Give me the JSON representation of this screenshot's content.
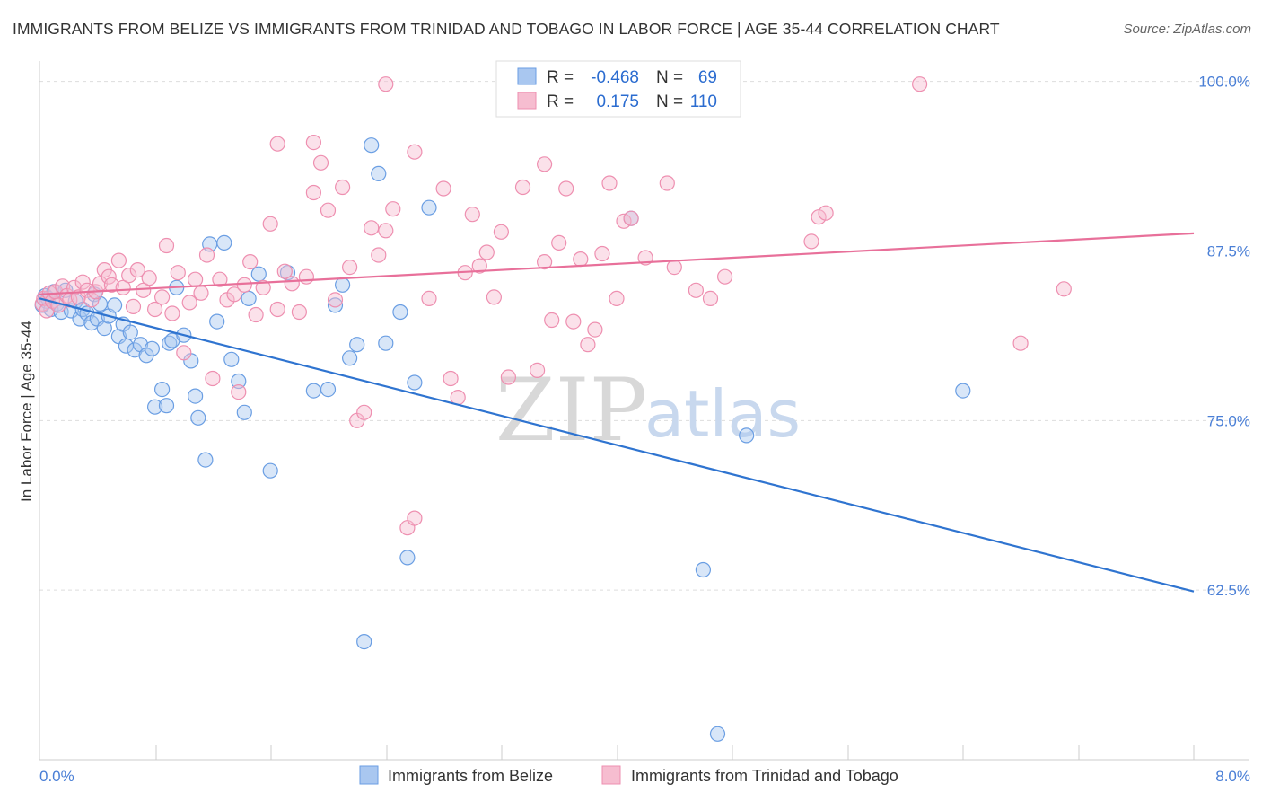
{
  "title": "IMMIGRANTS FROM BELIZE VS IMMIGRANTS FROM TRINIDAD AND TOBAGO IN LABOR FORCE | AGE 35-44 CORRELATION CHART",
  "source": "Source: ZipAtlas.com",
  "watermark": {
    "zip": "ZIP",
    "atlas": "atlas"
  },
  "colors": {
    "blue_fill": "#a9c7f0",
    "blue_stroke": "#6a9ee3",
    "blue_line": "#2f74d0",
    "pink_fill": "#f6bdd0",
    "pink_stroke": "#ee8fb0",
    "pink_line": "#e8709a",
    "grid": "#dddddd",
    "tick_label": "#4a7fd6"
  },
  "legend": {
    "rows": [
      {
        "r_label": "R =",
        "r_value": "-0.468",
        "n_label": "N =",
        "n_value": "69",
        "color": "blue"
      },
      {
        "r_label": "R =",
        "r_value": "0.175",
        "n_label": "N =",
        "n_value": "110",
        "color": "pink"
      }
    ]
  },
  "chart_data": {
    "type": "scatter",
    "title": "IMMIGRANTS FROM BELIZE VS IMMIGRANTS FROM TRINIDAD AND TOBAGO IN LABOR FORCE | AGE 35-44 CORRELATION CHART",
    "xlabel": "",
    "ylabel": "In Labor Force | Age 35-44",
    "xlim": [
      0.0,
      8.0
    ],
    "ylim": [
      50.0,
      101.5
    ],
    "x_tick_labels": [
      "0.0%",
      "8.0%"
    ],
    "y_ticks": [
      62.5,
      75.0,
      87.5,
      100.0
    ],
    "y_tick_labels": [
      "62.5%",
      "75.0%",
      "87.5%",
      "100.0%"
    ],
    "grid": true,
    "legend_position": "top-center",
    "series": [
      {
        "name": "Immigrants from Belize",
        "color": "blue",
        "trend": {
          "x": [
            0.0,
            8.0
          ],
          "y": [
            84.0,
            62.4
          ]
        },
        "points": [
          [
            0.02,
            83.5
          ],
          [
            0.04,
            84.2
          ],
          [
            0.05,
            83.8
          ],
          [
            0.06,
            84.0
          ],
          [
            0.08,
            83.2
          ],
          [
            0.1,
            84.5
          ],
          [
            0.12,
            83.6
          ],
          [
            0.15,
            83.0
          ],
          [
            0.18,
            84.6
          ],
          [
            0.22,
            83.1
          ],
          [
            0.25,
            83.8
          ],
          [
            0.28,
            82.5
          ],
          [
            0.3,
            83.2
          ],
          [
            0.33,
            82.9
          ],
          [
            0.36,
            82.2
          ],
          [
            0.38,
            84.3
          ],
          [
            0.4,
            82.5
          ],
          [
            0.42,
            83.6
          ],
          [
            0.45,
            81.8
          ],
          [
            0.48,
            82.7
          ],
          [
            0.52,
            83.5
          ],
          [
            0.55,
            81.2
          ],
          [
            0.58,
            82.1
          ],
          [
            0.6,
            80.5
          ],
          [
            0.63,
            81.5
          ],
          [
            0.66,
            80.2
          ],
          [
            0.7,
            80.6
          ],
          [
            0.74,
            79.8
          ],
          [
            0.78,
            80.3
          ],
          [
            0.8,
            76.0
          ],
          [
            0.85,
            77.3
          ],
          [
            0.88,
            76.1
          ],
          [
            0.9,
            80.7
          ],
          [
            0.92,
            80.9
          ],
          [
            0.95,
            84.8
          ],
          [
            1.0,
            81.3
          ],
          [
            1.05,
            79.4
          ],
          [
            1.08,
            76.8
          ],
          [
            1.1,
            75.2
          ],
          [
            1.15,
            72.1
          ],
          [
            1.18,
            88.0
          ],
          [
            1.23,
            82.3
          ],
          [
            1.28,
            88.1
          ],
          [
            1.33,
            79.5
          ],
          [
            1.38,
            77.9
          ],
          [
            1.42,
            75.6
          ],
          [
            1.45,
            84.0
          ],
          [
            1.52,
            85.8
          ],
          [
            1.6,
            71.3
          ],
          [
            1.72,
            85.9
          ],
          [
            1.9,
            77.2
          ],
          [
            2.0,
            77.3
          ],
          [
            2.05,
            83.5
          ],
          [
            2.1,
            85.0
          ],
          [
            2.15,
            79.6
          ],
          [
            2.2,
            80.6
          ],
          [
            2.25,
            58.7
          ],
          [
            2.3,
            95.3
          ],
          [
            2.35,
            93.2
          ],
          [
            2.4,
            80.7
          ],
          [
            2.5,
            83.0
          ],
          [
            2.55,
            64.9
          ],
          [
            2.6,
            77.8
          ],
          [
            2.7,
            90.7
          ],
          [
            4.1,
            89.9
          ],
          [
            4.6,
            64.0
          ],
          [
            4.7,
            51.9
          ],
          [
            4.9,
            73.9
          ],
          [
            6.4,
            77.2
          ]
        ]
      },
      {
        "name": "Immigrants from Trinidad and Tobago",
        "color": "pink",
        "trend": {
          "x": [
            0.0,
            8.0
          ],
          "y": [
            84.3,
            88.8
          ]
        },
        "points": [
          [
            0.02,
            83.6
          ],
          [
            0.03,
            84.0
          ],
          [
            0.05,
            83.1
          ],
          [
            0.07,
            84.4
          ],
          [
            0.09,
            83.8
          ],
          [
            0.11,
            84.5
          ],
          [
            0.13,
            83.5
          ],
          [
            0.16,
            84.9
          ],
          [
            0.19,
            84.2
          ],
          [
            0.21,
            83.9
          ],
          [
            0.24,
            84.8
          ],
          [
            0.27,
            84.1
          ],
          [
            0.3,
            85.2
          ],
          [
            0.33,
            84.6
          ],
          [
            0.36,
            83.9
          ],
          [
            0.39,
            84.5
          ],
          [
            0.42,
            85.1
          ],
          [
            0.45,
            86.1
          ],
          [
            0.48,
            85.6
          ],
          [
            0.5,
            85.0
          ],
          [
            0.55,
            86.8
          ],
          [
            0.58,
            84.8
          ],
          [
            0.62,
            85.7
          ],
          [
            0.65,
            83.4
          ],
          [
            0.68,
            86.1
          ],
          [
            0.72,
            84.6
          ],
          [
            0.76,
            85.5
          ],
          [
            0.8,
            83.2
          ],
          [
            0.85,
            84.1
          ],
          [
            0.88,
            87.9
          ],
          [
            0.92,
            82.9
          ],
          [
            0.96,
            85.9
          ],
          [
            1.0,
            80.0
          ],
          [
            1.04,
            83.7
          ],
          [
            1.08,
            85.4
          ],
          [
            1.12,
            84.4
          ],
          [
            1.16,
            87.2
          ],
          [
            1.2,
            78.1
          ],
          [
            1.25,
            85.4
          ],
          [
            1.3,
            83.9
          ],
          [
            1.35,
            84.3
          ],
          [
            1.38,
            77.1
          ],
          [
            1.42,
            85.0
          ],
          [
            1.46,
            86.7
          ],
          [
            1.5,
            82.8
          ],
          [
            1.55,
            84.8
          ],
          [
            1.6,
            89.5
          ],
          [
            1.65,
            83.2
          ],
          [
            1.7,
            86.0
          ],
          [
            1.75,
            85.1
          ],
          [
            1.8,
            83.0
          ],
          [
            1.85,
            85.6
          ],
          [
            1.9,
            95.5
          ],
          [
            1.95,
            94.0
          ],
          [
            2.0,
            90.5
          ],
          [
            2.05,
            83.9
          ],
          [
            2.1,
            92.2
          ],
          [
            2.15,
            86.3
          ],
          [
            2.2,
            75.0
          ],
          [
            2.25,
            75.6
          ],
          [
            2.3,
            89.2
          ],
          [
            2.35,
            87.2
          ],
          [
            2.4,
            89.0
          ],
          [
            2.45,
            90.6
          ],
          [
            2.55,
            67.1
          ],
          [
            2.6,
            67.8
          ],
          [
            2.7,
            84.0
          ],
          [
            2.8,
            92.1
          ],
          [
            2.85,
            78.1
          ],
          [
            2.9,
            76.7
          ],
          [
            2.95,
            85.9
          ],
          [
            3.0,
            90.2
          ],
          [
            3.05,
            86.4
          ],
          [
            3.1,
            87.4
          ],
          [
            3.15,
            84.1
          ],
          [
            3.2,
            88.9
          ],
          [
            3.25,
            78.2
          ],
          [
            3.35,
            92.2
          ],
          [
            3.45,
            78.7
          ],
          [
            3.5,
            86.7
          ],
          [
            3.55,
            82.4
          ],
          [
            3.6,
            88.1
          ],
          [
            3.65,
            92.1
          ],
          [
            3.7,
            82.3
          ],
          [
            3.75,
            86.9
          ],
          [
            3.8,
            80.6
          ],
          [
            3.85,
            81.7
          ],
          [
            3.9,
            87.3
          ],
          [
            3.95,
            92.5
          ],
          [
            4.0,
            84.0
          ],
          [
            4.05,
            89.7
          ],
          [
            4.1,
            89.9
          ],
          [
            4.2,
            87.0
          ],
          [
            4.35,
            92.5
          ],
          [
            4.4,
            86.3
          ],
          [
            4.55,
            84.6
          ],
          [
            4.65,
            84.0
          ],
          [
            4.75,
            85.6
          ],
          [
            5.35,
            88.2
          ],
          [
            5.4,
            90.0
          ],
          [
            5.45,
            90.3
          ],
          [
            4.1,
            99.5
          ],
          [
            2.4,
            99.8
          ],
          [
            6.1,
            99.8
          ],
          [
            6.8,
            80.7
          ],
          [
            7.1,
            84.7
          ],
          [
            1.65,
            95.4
          ],
          [
            1.9,
            91.8
          ],
          [
            2.6,
            94.8
          ],
          [
            3.5,
            93.9
          ]
        ]
      }
    ]
  },
  "bottom_legend": [
    {
      "label": "Immigrants from Belize",
      "color": "blue"
    },
    {
      "label": "Immigrants from Trinidad and Tobago",
      "color": "pink"
    }
  ]
}
